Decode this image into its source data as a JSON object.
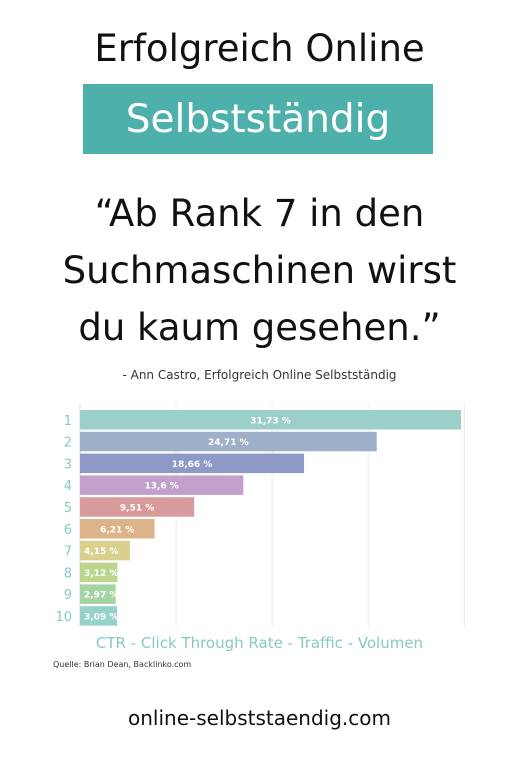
{
  "header": {
    "line1": "Erfolgreich Online",
    "line2": "Selbstständig"
  },
  "quote": {
    "line1": "“Ab Rank 7 in den",
    "line2": "Suchmaschinen wirst",
    "line3": "du kaum gesehen.”",
    "attribution": "- Ann Castro, Erfolgreich Online Selbstständig"
  },
  "chart_data": {
    "type": "bar",
    "orientation": "horizontal",
    "categories": [
      "1",
      "2",
      "3",
      "4",
      "5",
      "6",
      "7",
      "8",
      "9",
      "10"
    ],
    "values": [
      31.73,
      24.71,
      18.66,
      13.6,
      9.51,
      6.21,
      4.15,
      3.12,
      2.97,
      3.09
    ],
    "value_labels": [
      "31,73 %",
      "24,71 %",
      "18,66 %",
      "13,6 %",
      "9,51 %",
      "6,21 %",
      "4,15 %",
      "3,12 %",
      "2,97 %",
      "3,09 %"
    ],
    "colors": [
      "#9ccfca",
      "#9db0c8",
      "#8f99c8",
      "#c3a0cb",
      "#d99a9b",
      "#ddb48a",
      "#d8d08c",
      "#bcd68e",
      "#a4d4a3",
      "#96d2c7"
    ],
    "xlabel": "CTR - Click Through Rate - Traffic - Volumen",
    "grid": true,
    "source": "Quelle: Brian Dean, Backlinko.com"
  },
  "footer": {
    "url": "online-selbststaendig.com"
  },
  "colors": {
    "accent": "#4eb0ab",
    "axis_text": "#86c9c4"
  }
}
